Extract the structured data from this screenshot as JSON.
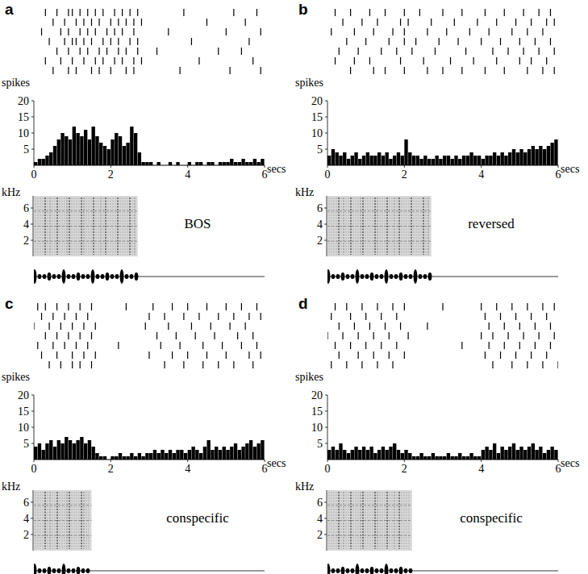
{
  "chart_data": [
    {
      "type": "histogram",
      "title": "a",
      "annotation": "BOS",
      "x_label": "secs",
      "y_label": "spikes",
      "xlim": [
        0,
        6
      ],
      "xticks": [
        0,
        2,
        4,
        6
      ],
      "ylim": [
        0,
        20
      ],
      "yticks": [
        5,
        10,
        15,
        20
      ],
      "color": "#000000",
      "bins": [
        0,
        0.1,
        0.2,
        0.3,
        0.4,
        0.5,
        0.6,
        0.7,
        0.8,
        0.9,
        1.0,
        1.1,
        1.2,
        1.3,
        1.4,
        1.5,
        1.6,
        1.7,
        1.8,
        1.9,
        2.0,
        2.1,
        2.2,
        2.3,
        2.4,
        2.5,
        2.6,
        2.7,
        2.8,
        2.9,
        3.0,
        3.1,
        3.2,
        3.3,
        3.4,
        3.5,
        3.6,
        3.7,
        3.8,
        3.9,
        4.0,
        4.1,
        4.2,
        4.3,
        4.4,
        4.5,
        4.6,
        4.7,
        4.8,
        4.9,
        5.0,
        5.1,
        5.2,
        5.3,
        5.4,
        5.5,
        5.6,
        5.7,
        5.8,
        5.9,
        6.0
      ],
      "values": [
        1,
        2,
        2,
        3,
        4,
        6,
        8,
        10,
        9,
        8,
        12,
        10,
        9,
        11,
        8,
        12,
        9,
        7,
        6,
        5,
        8,
        10,
        9,
        6,
        7,
        12,
        10,
        4,
        1,
        1,
        1,
        0,
        1,
        0,
        0,
        1,
        0,
        1,
        0,
        0,
        1,
        0,
        1,
        1,
        0,
        1,
        1,
        0,
        1,
        1,
        1,
        2,
        1,
        1,
        2,
        1,
        1,
        2,
        1,
        2
      ],
      "raster": [
        [
          0.3,
          0.6,
          0.9,
          1.0,
          1.2,
          1.4,
          1.6,
          1.8,
          2.1,
          2.3,
          2.5,
          2.7,
          3.9,
          5.2,
          5.8
        ],
        [
          0.5,
          0.8,
          1.1,
          1.3,
          1.5,
          1.7,
          2.0,
          2.2,
          2.4,
          2.6,
          2.8,
          4.5,
          5.5
        ],
        [
          0.2,
          0.7,
          0.9,
          1.2,
          1.4,
          1.6,
          1.9,
          2.1,
          2.3,
          2.6,
          3.5,
          5.0,
          5.9
        ],
        [
          0.4,
          0.8,
          1.0,
          1.1,
          1.3,
          1.5,
          1.8,
          2.0,
          2.2,
          2.5,
          2.7,
          4.1,
          5.6
        ],
        [
          0.6,
          0.9,
          1.2,
          1.4,
          1.7,
          1.9,
          2.2,
          2.4,
          2.7,
          3.2,
          4.8,
          5.4
        ],
        [
          0.3,
          0.7,
          1.0,
          1.3,
          1.6,
          1.8,
          2.1,
          2.3,
          2.6,
          2.8,
          4.3,
          5.7
        ],
        [
          0.5,
          0.9,
          1.1,
          1.5,
          1.7,
          2.0,
          2.4,
          2.6,
          3.8,
          5.1,
          5.9
        ]
      ],
      "spectrogram": {
        "y_label": "kHz",
        "ylim": [
          0,
          7.5
        ],
        "yticks": [
          2,
          4,
          6
        ],
        "duration": 2.7
      }
    },
    {
      "type": "histogram",
      "title": "b",
      "annotation": "reversed",
      "x_label": "secs",
      "y_label": "spikes",
      "xlim": [
        0,
        6
      ],
      "xticks": [
        0,
        2,
        4,
        6
      ],
      "ylim": [
        0,
        20
      ],
      "yticks": [
        5,
        10,
        15,
        20
      ],
      "color": "#000000",
      "bins": [
        0,
        0.1,
        0.2,
        0.3,
        0.4,
        0.5,
        0.6,
        0.7,
        0.8,
        0.9,
        1.0,
        1.1,
        1.2,
        1.3,
        1.4,
        1.5,
        1.6,
        1.7,
        1.8,
        1.9,
        2.0,
        2.1,
        2.2,
        2.3,
        2.4,
        2.5,
        2.6,
        2.7,
        2.8,
        2.9,
        3.0,
        3.1,
        3.2,
        3.3,
        3.4,
        3.5,
        3.6,
        3.7,
        3.8,
        3.9,
        4.0,
        4.1,
        4.2,
        4.3,
        4.4,
        4.5,
        4.6,
        4.7,
        4.8,
        4.9,
        5.0,
        5.1,
        5.2,
        5.3,
        5.4,
        5.5,
        5.6,
        5.7,
        5.8,
        5.9,
        6.0
      ],
      "values": [
        3,
        5,
        4,
        3,
        4,
        2,
        3,
        4,
        2,
        3,
        4,
        3,
        3,
        4,
        3,
        4,
        2,
        3,
        4,
        3,
        8,
        4,
        3,
        3,
        2,
        3,
        2,
        2,
        3,
        2,
        3,
        3,
        2,
        3,
        2,
        3,
        3,
        4,
        3,
        3,
        2,
        3,
        3,
        4,
        3,
        4,
        3,
        4,
        5,
        4,
        5,
        4,
        5,
        6,
        5,
        6,
        5,
        6,
        7,
        8
      ],
      "raster": [
        [
          0.2,
          0.6,
          1.1,
          1.5,
          2.0,
          2.4,
          3.0,
          3.5,
          4.1,
          4.6,
          5.1,
          5.5,
          5.8
        ],
        [
          0.4,
          0.9,
          1.3,
          1.9,
          2.1,
          2.7,
          3.3,
          3.9,
          4.4,
          4.9,
          5.3,
          5.7,
          5.9
        ],
        [
          0.1,
          0.7,
          1.2,
          1.7,
          2.0,
          2.6,
          3.1,
          3.7,
          4.2,
          4.8,
          5.2,
          5.6
        ],
        [
          0.5,
          1.0,
          1.6,
          2.0,
          2.3,
          2.9,
          3.4,
          4.0,
          4.5,
          5.0,
          5.4,
          5.8
        ],
        [
          0.3,
          0.8,
          1.4,
          1.8,
          2.2,
          2.8,
          3.6,
          4.3,
          4.7,
          5.1,
          5.5,
          5.9
        ],
        [
          0.2,
          0.7,
          1.1,
          1.9,
          2.5,
          3.2,
          3.8,
          4.4,
          5.0,
          5.3,
          5.7
        ],
        [
          0.6,
          1.2,
          1.5,
          2.0,
          2.6,
          3.0,
          3.5,
          4.1,
          4.6,
          5.2,
          5.6,
          5.9
        ]
      ],
      "spectrogram": {
        "y_label": "kHz",
        "ylim": [
          0,
          7.5
        ],
        "yticks": [
          2,
          4,
          6
        ],
        "duration": 2.7
      }
    },
    {
      "type": "histogram",
      "title": "c",
      "annotation": "conspecific",
      "x_label": "secs",
      "y_label": "spikes",
      "xlim": [
        0,
        6
      ],
      "xticks": [
        0,
        2,
        4,
        6
      ],
      "ylim": [
        0,
        20
      ],
      "yticks": [
        5,
        10,
        15,
        20
      ],
      "color": "#000000",
      "bins": [
        0,
        0.1,
        0.2,
        0.3,
        0.4,
        0.5,
        0.6,
        0.7,
        0.8,
        0.9,
        1.0,
        1.1,
        1.2,
        1.3,
        1.4,
        1.5,
        1.6,
        1.7,
        1.8,
        1.9,
        2.0,
        2.1,
        2.2,
        2.3,
        2.4,
        2.5,
        2.6,
        2.7,
        2.8,
        2.9,
        3.0,
        3.1,
        3.2,
        3.3,
        3.4,
        3.5,
        3.6,
        3.7,
        3.8,
        3.9,
        4.0,
        4.1,
        4.2,
        4.3,
        4.4,
        4.5,
        4.6,
        4.7,
        4.8,
        4.9,
        5.0,
        5.1,
        5.2,
        5.3,
        5.4,
        5.5,
        5.6,
        5.7,
        5.8,
        5.9,
        6.0
      ],
      "values": [
        4,
        5,
        3,
        5,
        6,
        4,
        6,
        5,
        7,
        6,
        5,
        6,
        7,
        5,
        6,
        4,
        2,
        1,
        1,
        0,
        1,
        1,
        2,
        1,
        1,
        2,
        1,
        2,
        1,
        2,
        2,
        3,
        2,
        3,
        2,
        3,
        2,
        3,
        3,
        2,
        3,
        4,
        3,
        2,
        4,
        6,
        3,
        4,
        3,
        4,
        3,
        4,
        5,
        3,
        4,
        5,
        6,
        4,
        5,
        6
      ],
      "raster": [
        [
          0.1,
          0.3,
          0.6,
          0.9,
          1.2,
          1.5,
          2.4,
          3.1,
          3.6,
          4.0,
          4.5,
          5.0,
          5.4,
          5.8
        ],
        [
          0.2,
          0.5,
          0.8,
          1.1,
          1.4,
          3.0,
          3.4,
          3.9,
          4.3,
          4.8,
          5.2,
          5.6,
          5.9
        ],
        [
          0.0,
          0.4,
          0.7,
          1.0,
          1.3,
          1.6,
          2.9,
          3.5,
          4.1,
          4.6,
          5.1,
          5.5
        ],
        [
          0.3,
          0.6,
          0.9,
          1.2,
          1.5,
          3.2,
          3.7,
          4.2,
          4.7,
          5.3,
          5.7
        ],
        [
          0.1,
          0.5,
          0.8,
          1.1,
          1.4,
          2.2,
          3.3,
          3.8,
          4.4,
          4.9,
          5.4,
          5.8
        ],
        [
          0.2,
          0.6,
          1.0,
          1.3,
          1.6,
          3.0,
          3.6,
          4.0,
          4.5,
          5.0,
          5.6,
          5.9
        ],
        [
          0.4,
          0.7,
          1.0,
          1.2,
          1.5,
          3.4,
          3.9,
          4.4,
          4.8,
          5.2,
          5.7
        ]
      ],
      "spectrogram": {
        "y_label": "kHz",
        "ylim": [
          0,
          7.5
        ],
        "yticks": [
          2,
          4,
          6
        ],
        "duration": 1.5
      }
    },
    {
      "type": "histogram",
      "title": "d",
      "annotation": "conspecific",
      "x_label": "secs",
      "y_label": "spikes",
      "xlim": [
        0,
        6
      ],
      "xticks": [
        0,
        2,
        4,
        6
      ],
      "ylim": [
        0,
        20
      ],
      "yticks": [
        5,
        10,
        15,
        20
      ],
      "color": "#000000",
      "bins": [
        0,
        0.1,
        0.2,
        0.3,
        0.4,
        0.5,
        0.6,
        0.7,
        0.8,
        0.9,
        1.0,
        1.1,
        1.2,
        1.3,
        1.4,
        1.5,
        1.6,
        1.7,
        1.8,
        1.9,
        2.0,
        2.1,
        2.2,
        2.3,
        2.4,
        2.5,
        2.6,
        2.7,
        2.8,
        2.9,
        3.0,
        3.1,
        3.2,
        3.3,
        3.4,
        3.5,
        3.6,
        3.7,
        3.8,
        3.9,
        4.0,
        4.1,
        4.2,
        4.3,
        4.4,
        4.5,
        4.6,
        4.7,
        4.8,
        4.9,
        5.0,
        5.1,
        5.2,
        5.3,
        5.4,
        5.5,
        5.6,
        5.7,
        5.8,
        5.9,
        6.0
      ],
      "values": [
        3,
        4,
        3,
        5,
        3,
        2,
        3,
        4,
        3,
        4,
        3,
        4,
        2,
        3,
        4,
        3,
        4,
        5,
        3,
        2,
        3,
        2,
        1,
        1,
        2,
        1,
        1,
        2,
        1,
        1,
        1,
        2,
        1,
        1,
        2,
        1,
        1,
        2,
        1,
        1,
        3,
        4,
        3,
        5,
        2,
        4,
        3,
        4,
        5,
        3,
        4,
        3,
        4,
        5,
        3,
        4,
        2,
        3,
        4,
        3
      ],
      "raster": [
        [
          0.2,
          0.5,
          0.9,
          1.3,
          1.7,
          2.0,
          3.0,
          4.0,
          4.4,
          4.8,
          5.2,
          5.6,
          5.9
        ],
        [
          0.1,
          0.6,
          1.0,
          1.4,
          1.8,
          4.1,
          4.5,
          4.9,
          5.3,
          5.7
        ],
        [
          0.3,
          0.7,
          1.1,
          1.5,
          1.9,
          2.6,
          4.2,
          4.6,
          5.0,
          5.4,
          5.8
        ],
        [
          0.0,
          0.4,
          0.8,
          1.2,
          1.6,
          2.1,
          4.0,
          4.3,
          4.7,
          5.1,
          5.5,
          5.9
        ],
        [
          0.2,
          0.6,
          1.0,
          1.4,
          1.8,
          3.5,
          4.2,
          4.6,
          5.0,
          5.4,
          5.8
        ],
        [
          0.3,
          0.8,
          1.2,
          1.6,
          2.0,
          4.1,
          4.5,
          4.9,
          5.3,
          5.7
        ],
        [
          0.1,
          0.5,
          0.9,
          1.3,
          1.7,
          4.3,
          4.8,
          5.2,
          5.6,
          6.0
        ]
      ],
      "spectrogram": {
        "y_label": "kHz",
        "ylim": [
          0,
          7.5
        ],
        "yticks": [
          2,
          4,
          6
        ],
        "duration": 2.2
      }
    }
  ]
}
